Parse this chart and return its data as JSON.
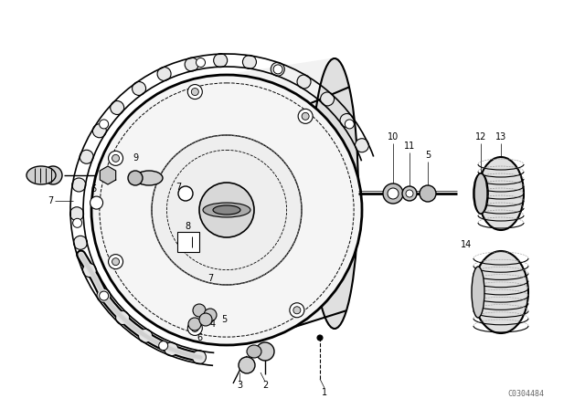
{
  "bg_color": "#ffffff",
  "line_color": "#000000",
  "watermark": "C0304484",
  "figsize": [
    6.4,
    4.48
  ],
  "dpi": 100
}
